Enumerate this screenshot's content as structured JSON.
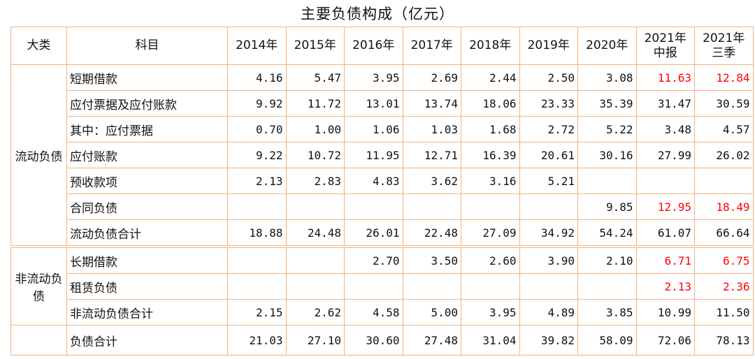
{
  "header": {
    "title": "主要负债构成（亿元）"
  },
  "table": {
    "headers": [
      "大类",
      "科目",
      "2014年",
      "2015年",
      "2016年",
      "2017年",
      "2018年",
      "2019年",
      "2020年",
      "2021年\n中报",
      "2021年\n三季"
    ],
    "highlight_color": "#ff0000",
    "groups": [
      {
        "label": "流动负债",
        "rows": [
          {
            "item": "短期借款",
            "values": [
              "4.16",
              "5.47",
              "3.95",
              "2.69",
              "2.44",
              "2.50",
              "3.08",
              "11.63",
              "12.84"
            ],
            "highlight": [
              7,
              8
            ]
          },
          {
            "item": "应付票据及应付账款",
            "values": [
              "9.92",
              "11.72",
              "13.01",
              "13.74",
              "18.06",
              "23.33",
              "35.39",
              "31.47",
              "30.59"
            ]
          },
          {
            "item": "其中：应付票据",
            "values": [
              "0.70",
              "1.00",
              "1.06",
              "1.03",
              "1.68",
              "2.72",
              "5.22",
              "3.48",
              "4.57"
            ]
          },
          {
            "item": "应付账款",
            "values": [
              "9.22",
              "10.72",
              "11.95",
              "12.71",
              "16.39",
              "20.61",
              "30.16",
              "27.99",
              "26.02"
            ]
          },
          {
            "item": "预收款项",
            "values": [
              "2.13",
              "2.83",
              "4.83",
              "3.62",
              "3.16",
              "5.21",
              null,
              null,
              null
            ]
          },
          {
            "item": "合同负债",
            "values": [
              null,
              null,
              null,
              null,
              null,
              null,
              "9.85",
              "12.95",
              "18.49"
            ],
            "highlight": [
              7,
              8
            ]
          },
          {
            "item": "流动负债合计",
            "values": [
              "18.88",
              "24.48",
              "26.01",
              "22.48",
              "27.09",
              "34.92",
              "54.24",
              "61.07",
              "66.64"
            ]
          }
        ]
      },
      {
        "label": "非流动负债",
        "rows": [
          {
            "item": "长期借款",
            "values": [
              null,
              null,
              "2.70",
              "3.50",
              "2.60",
              "3.90",
              "2.10",
              "6.71",
              "6.75"
            ],
            "highlight": [
              7,
              8
            ]
          },
          {
            "item": "租赁负债",
            "values": [
              null,
              null,
              null,
              null,
              null,
              null,
              null,
              "2.13",
              "2.36"
            ],
            "highlight": [
              7,
              8
            ]
          },
          {
            "item": "非流动负债合计",
            "values": [
              "2.15",
              "2.62",
              "4.58",
              "5.00",
              "3.95",
              "4.89",
              "3.85",
              "10.99",
              "11.50"
            ]
          }
        ]
      }
    ],
    "total": {
      "item": "负债合计",
      "values": [
        "21.03",
        "27.10",
        "30.60",
        "27.48",
        "31.04",
        "39.82",
        "58.09",
        "72.06",
        "78.13"
      ]
    }
  }
}
